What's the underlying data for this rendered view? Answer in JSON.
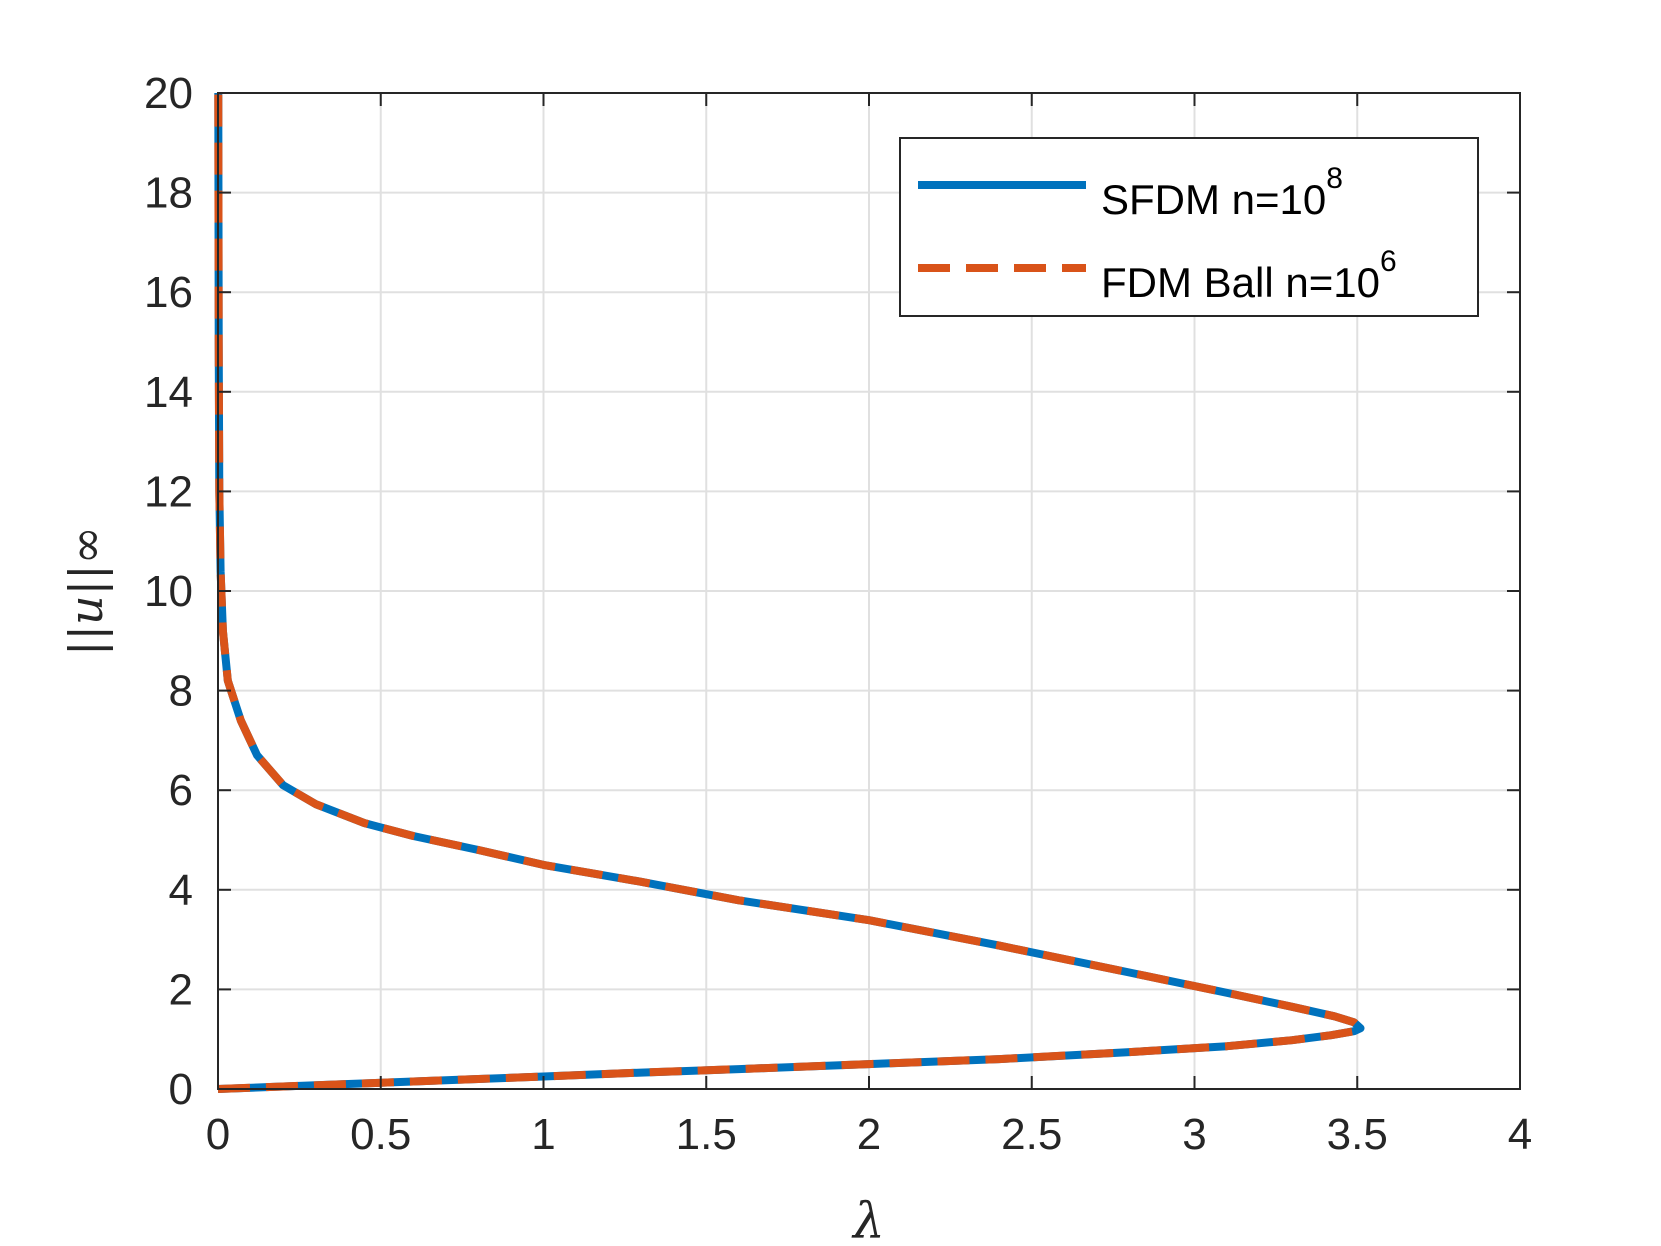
{
  "chart_data": {
    "type": "line",
    "xlabel": "λ",
    "ylabel": "||u||∞",
    "xlim": [
      0,
      4
    ],
    "ylim": [
      0,
      20
    ],
    "xticks": [
      0,
      0.5,
      1,
      1.5,
      2,
      2.5,
      3,
      3.5,
      4
    ],
    "yticks": [
      0,
      2,
      4,
      6,
      8,
      10,
      12,
      14,
      16,
      18,
      20
    ],
    "xtick_labels": [
      "0",
      "0.5",
      "1",
      "1.5",
      "2",
      "2.5",
      "3",
      "3.5",
      "4"
    ],
    "ytick_labels": [
      "0",
      "2",
      "4",
      "6",
      "8",
      "10",
      "12",
      "14",
      "16",
      "18",
      "20"
    ],
    "grid": true,
    "legend_position": "top-right",
    "colors": {
      "series1": "#0072BD",
      "series2": "#D95319",
      "grid": "#e0e0e0",
      "axis": "#262626"
    },
    "series": [
      {
        "name": "SFDM n=10",
        "name_sup": "8",
        "style": "solid",
        "x": [
          0.0,
          0.2,
          0.4,
          0.6,
          0.8,
          1.0,
          1.3,
          1.6,
          2.0,
          2.4,
          2.8,
          3.1,
          3.3,
          3.42,
          3.49,
          3.51,
          3.49,
          3.43,
          3.3,
          3.1,
          2.8,
          2.4,
          2.0,
          1.6,
          1.3,
          1.0,
          0.8,
          0.6,
          0.45,
          0.3,
          0.2,
          0.12,
          0.07,
          0.03,
          0.015,
          0.008,
          0.004,
          0.002,
          0.001
        ],
        "y": [
          0.0,
          0.05,
          0.1,
          0.15,
          0.2,
          0.25,
          0.33,
          0.4,
          0.5,
          0.6,
          0.74,
          0.86,
          0.98,
          1.08,
          1.16,
          1.22,
          1.34,
          1.46,
          1.65,
          1.93,
          2.34,
          2.88,
          3.39,
          3.79,
          4.16,
          4.5,
          4.8,
          5.08,
          5.34,
          5.72,
          6.1,
          6.7,
          7.4,
          8.2,
          9.2,
          10.4,
          12.0,
          15.0,
          20.0
        ]
      },
      {
        "name": "FDM Ball n=10",
        "name_sup": "6",
        "style": "dashed",
        "x": [
          0.0,
          0.2,
          0.4,
          0.6,
          0.8,
          1.0,
          1.3,
          1.6,
          2.0,
          2.4,
          2.8,
          3.1,
          3.3,
          3.42,
          3.49,
          3.51,
          3.49,
          3.43,
          3.3,
          3.1,
          2.8,
          2.4,
          2.0,
          1.6,
          1.3,
          1.0,
          0.8,
          0.6,
          0.45,
          0.3,
          0.2,
          0.12,
          0.07,
          0.03,
          0.015,
          0.008,
          0.004,
          0.002,
          0.001
        ],
        "y": [
          0.0,
          0.05,
          0.1,
          0.15,
          0.2,
          0.25,
          0.33,
          0.4,
          0.5,
          0.6,
          0.74,
          0.86,
          0.98,
          1.08,
          1.16,
          1.22,
          1.34,
          1.46,
          1.65,
          1.93,
          2.34,
          2.88,
          3.39,
          3.79,
          4.16,
          4.5,
          4.8,
          5.08,
          5.34,
          5.72,
          6.1,
          6.7,
          7.4,
          8.2,
          9.2,
          10.4,
          12.0,
          15.0,
          20.0
        ]
      }
    ]
  }
}
